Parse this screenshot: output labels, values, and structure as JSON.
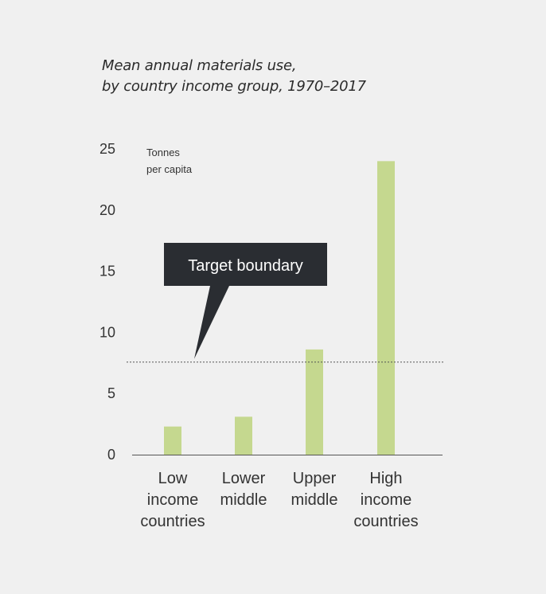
{
  "chart_data": {
    "type": "bar",
    "title_lines": [
      "Mean annual materials use,",
      "by country income group, 1970–2017"
    ],
    "unit_label_lines": [
      "Tonnes",
      "per capita"
    ],
    "categories": [
      [
        "Low",
        "income",
        "countries"
      ],
      [
        "Lower",
        "middle"
      ],
      [
        "Upper",
        "middle"
      ],
      [
        "High",
        "income",
        "countries"
      ]
    ],
    "values": [
      2.3,
      3.1,
      8.6,
      24.0
    ],
    "ylim": [
      0,
      25
    ],
    "yticks": [
      0,
      5,
      10,
      15,
      20,
      25
    ],
    "reference_line": {
      "label": "Target boundary",
      "value": 7.6
    },
    "colors": {
      "bar": "#c5d88f",
      "callout": "#2a2d32",
      "axis": "#555555",
      "reference": "#555555"
    }
  }
}
